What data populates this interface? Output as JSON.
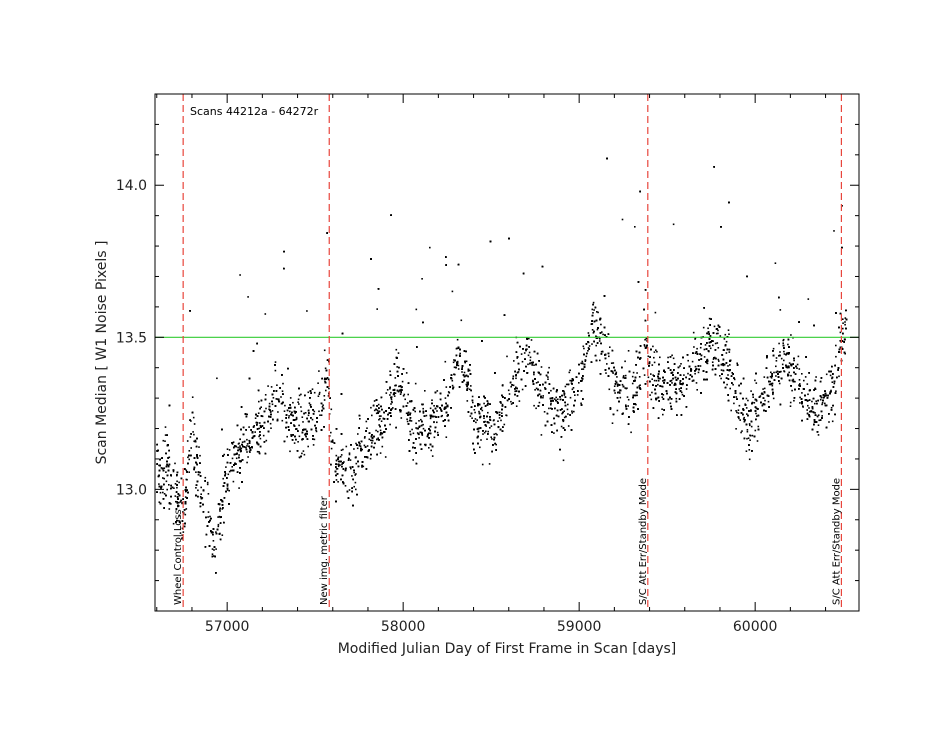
{
  "chart_data": {
    "type": "scatter",
    "title": "",
    "subtitle": "Scans 44212a - 64272r",
    "xlabel": "Modified Julian Day of First Frame in Scan [days]",
    "ylabel": "Scan Median [ W1 Noise Pixels ]",
    "xlim": [
      56590,
      60590
    ],
    "ylim": [
      12.6,
      14.3
    ],
    "xticks": [
      57000,
      58000,
      59000,
      60000
    ],
    "xtick_labels": [
      "57000",
      "58000",
      "59000",
      "60000"
    ],
    "yticks": [
      13.0,
      13.5,
      14.0
    ],
    "ytick_labels": [
      "13.0",
      "13.5",
      "14.0"
    ],
    "grid": false,
    "colors": {
      "points": "#000000",
      "event_lines": "#e8453c",
      "reference_line": "#33cc33"
    },
    "reference_line": {
      "y": 13.5
    },
    "events": [
      {
        "x": 56750,
        "label": "Wheel Control Loss"
      },
      {
        "x": 57580,
        "label": "New img. metric filter"
      },
      {
        "x": 59390,
        "label": "S/C Att Err/Standby Mode"
      },
      {
        "x": 60490,
        "label": "S/C Att Err/Standby Mode"
      }
    ],
    "trend": [
      [
        56600,
        13.05
      ],
      [
        56650,
        13.08
      ],
      [
        56700,
        13.0
      ],
      [
        56750,
        12.9
      ],
      [
        56800,
        13.2
      ],
      [
        56850,
        13.0
      ],
      [
        56900,
        12.9
      ],
      [
        56930,
        12.78
      ],
      [
        57000,
        13.05
      ],
      [
        57100,
        13.15
      ],
      [
        57200,
        13.22
      ],
      [
        57300,
        13.3
      ],
      [
        57400,
        13.2
      ],
      [
        57500,
        13.25
      ],
      [
        57570,
        13.35
      ],
      [
        57600,
        13.1
      ],
      [
        57700,
        13.05
      ],
      [
        57800,
        13.15
      ],
      [
        57900,
        13.25
      ],
      [
        57980,
        13.35
      ],
      [
        58050,
        13.2
      ],
      [
        58150,
        13.2
      ],
      [
        58250,
        13.3
      ],
      [
        58330,
        13.45
      ],
      [
        58400,
        13.25
      ],
      [
        58500,
        13.2
      ],
      [
        58600,
        13.3
      ],
      [
        58700,
        13.45
      ],
      [
        58800,
        13.3
      ],
      [
        58900,
        13.25
      ],
      [
        59000,
        13.35
      ],
      [
        59080,
        13.55
      ],
      [
        59200,
        13.35
      ],
      [
        59300,
        13.3
      ],
      [
        59380,
        13.45
      ],
      [
        59450,
        13.35
      ],
      [
        59600,
        13.35
      ],
      [
        59750,
        13.5
      ],
      [
        59850,
        13.4
      ],
      [
        59950,
        13.2
      ],
      [
        60050,
        13.3
      ],
      [
        60150,
        13.45
      ],
      [
        60250,
        13.35
      ],
      [
        60350,
        13.25
      ],
      [
        60450,
        13.35
      ],
      [
        60520,
        13.55
      ]
    ]
  }
}
